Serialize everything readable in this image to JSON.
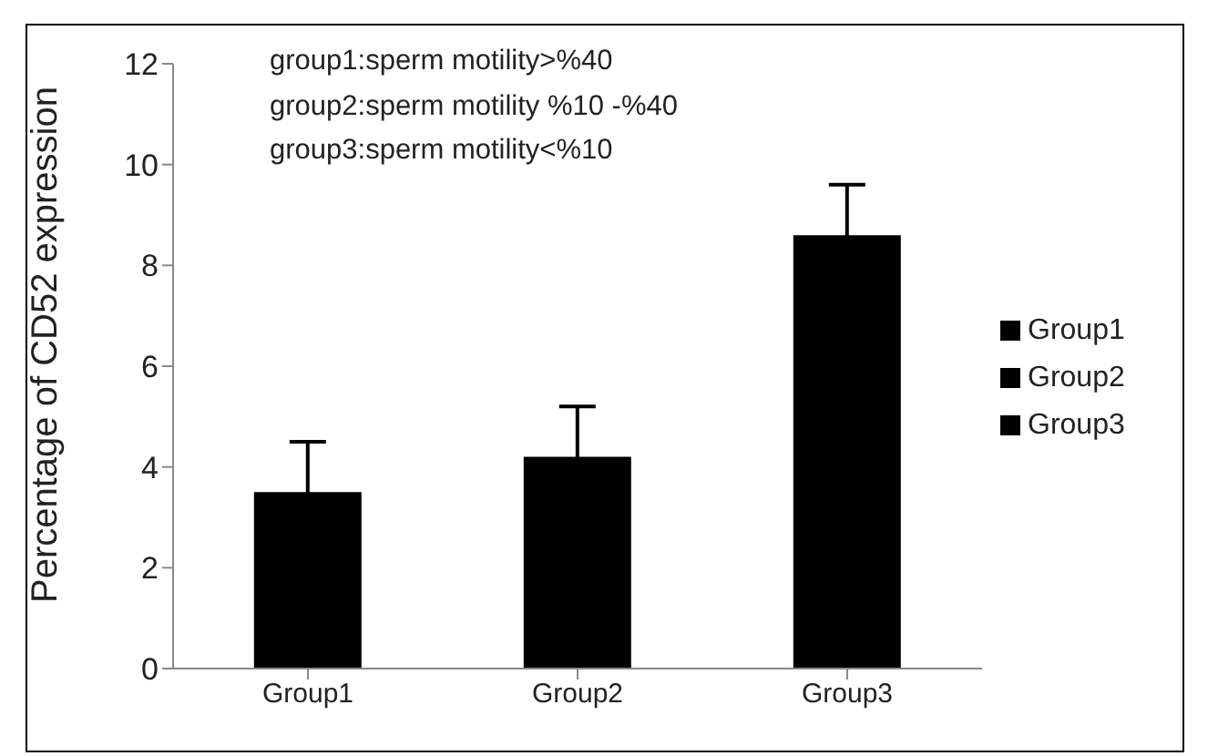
{
  "chart_data": {
    "type": "bar",
    "ylabel": "Percentage of CD52 expression",
    "categories": [
      "Group1",
      "Group2",
      "Group3"
    ],
    "stacked": true,
    "series": [
      {
        "name": "Group1",
        "color": "#000000",
        "values": [
          3.5,
          null,
          null
        ],
        "errors": [
          1.0,
          null,
          null
        ]
      },
      {
        "name": "Group2",
        "color": "#000000",
        "values": [
          null,
          4.2,
          null
        ],
        "errors": [
          null,
          1.0,
          null
        ]
      },
      {
        "name": "Group3",
        "color": "#000000",
        "values": [
          null,
          null,
          8.6
        ],
        "errors": [
          null,
          null,
          1.0
        ]
      }
    ],
    "ylim": [
      0,
      12
    ],
    "yticks": [
      0,
      2,
      4,
      6,
      8,
      10,
      12
    ],
    "grid": false,
    "legend": "right",
    "annotations": [
      "group1:sperm motility>%40",
      "group2:sperm motility %10 -%40",
      "group3:sperm motility<%10"
    ]
  }
}
